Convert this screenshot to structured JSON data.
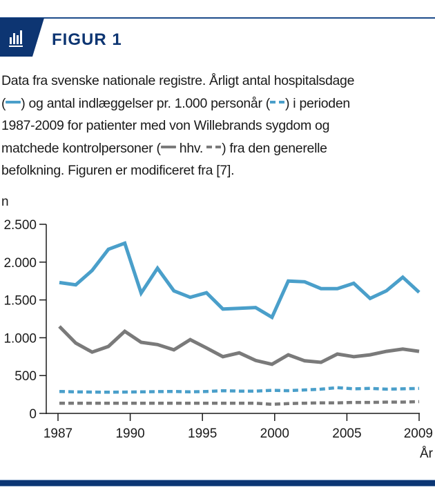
{
  "header": {
    "figure_label": "FIGUR 1",
    "icon": "bar-chart-icon",
    "accent_color": "#0d3572"
  },
  "caption": {
    "part1": "Data fra svenske nationale registre. Årligt antal hospitalsdage",
    "part2a": ") og antal indlæggelser pr. 1.000 personår (",
    "part2b": ") i perioden",
    "part3": "1987-2009 for patienter med von Willebrands sygdom og",
    "part4a": "matchede kontrolpersoner (",
    "part4b": " hhv. ",
    "part4c": ") fra den generelle",
    "part5": "befolkning. Figuren er modificeret fra [7].",
    "open_paren": "("
  },
  "colors": {
    "patients": "#4a9fca",
    "controls": "#7a7a7a",
    "axis": "#1a1a1a"
  },
  "chart_data": {
    "type": "line",
    "title": "",
    "xlabel": "År",
    "ylabel": "n",
    "ylim": [
      0,
      2500
    ],
    "yticks": [
      0,
      500,
      1000,
      1500,
      2000,
      2500
    ],
    "ytick_labels": [
      "0",
      "500",
      "1.000",
      "1.500",
      "2.000",
      "2.500"
    ],
    "xtick_labels": [
      "1987",
      "1990",
      "1995",
      "2000",
      "2005",
      "2009"
    ],
    "x": [
      1987,
      1988,
      1989,
      1990,
      1991,
      1992,
      1993,
      1994,
      1995,
      1996,
      1997,
      1998,
      1999,
      2000,
      2001,
      2002,
      2003,
      2004,
      2005,
      2006,
      2007,
      2008,
      2009
    ],
    "grid": false,
    "legend": "in caption",
    "series": [
      {
        "name": "Hospitalsdage – patienter med von Willebrands sygdom",
        "style": "solid",
        "color": "#4a9fca",
        "values": [
          1730,
          1700,
          1890,
          2170,
          2250,
          1590,
          1920,
          1620,
          1535,
          1595,
          1380,
          1390,
          1400,
          1270,
          1750,
          1740,
          1650,
          1650,
          1720,
          1520,
          1620,
          1800,
          1600
        ]
      },
      {
        "name": "Hospitalsdage – kontrolpersoner",
        "style": "solid",
        "color": "#7a7a7a",
        "values": [
          1150,
          930,
          810,
          885,
          1085,
          940,
          910,
          840,
          975,
          865,
          750,
          800,
          700,
          650,
          775,
          695,
          675,
          785,
          750,
          775,
          820,
          850,
          820
        ]
      },
      {
        "name": "Indlæggelser pr. 1.000 personår – patienter med von Willebrands sygdom",
        "style": "dashed",
        "color": "#4a9fca",
        "values": [
          290,
          285,
          282,
          280,
          282,
          285,
          288,
          290,
          285,
          290,
          300,
          295,
          295,
          305,
          300,
          310,
          320,
          340,
          325,
          330,
          320,
          325,
          330
        ]
      },
      {
        "name": "Indlæggelser pr. 1.000 personår – kontrolpersoner",
        "style": "dashed",
        "color": "#7a7a7a",
        "values": [
          135,
          135,
          135,
          135,
          135,
          135,
          135,
          135,
          135,
          135,
          135,
          135,
          135,
          120,
          130,
          135,
          140,
          140,
          145,
          145,
          150,
          150,
          155
        ]
      }
    ]
  }
}
